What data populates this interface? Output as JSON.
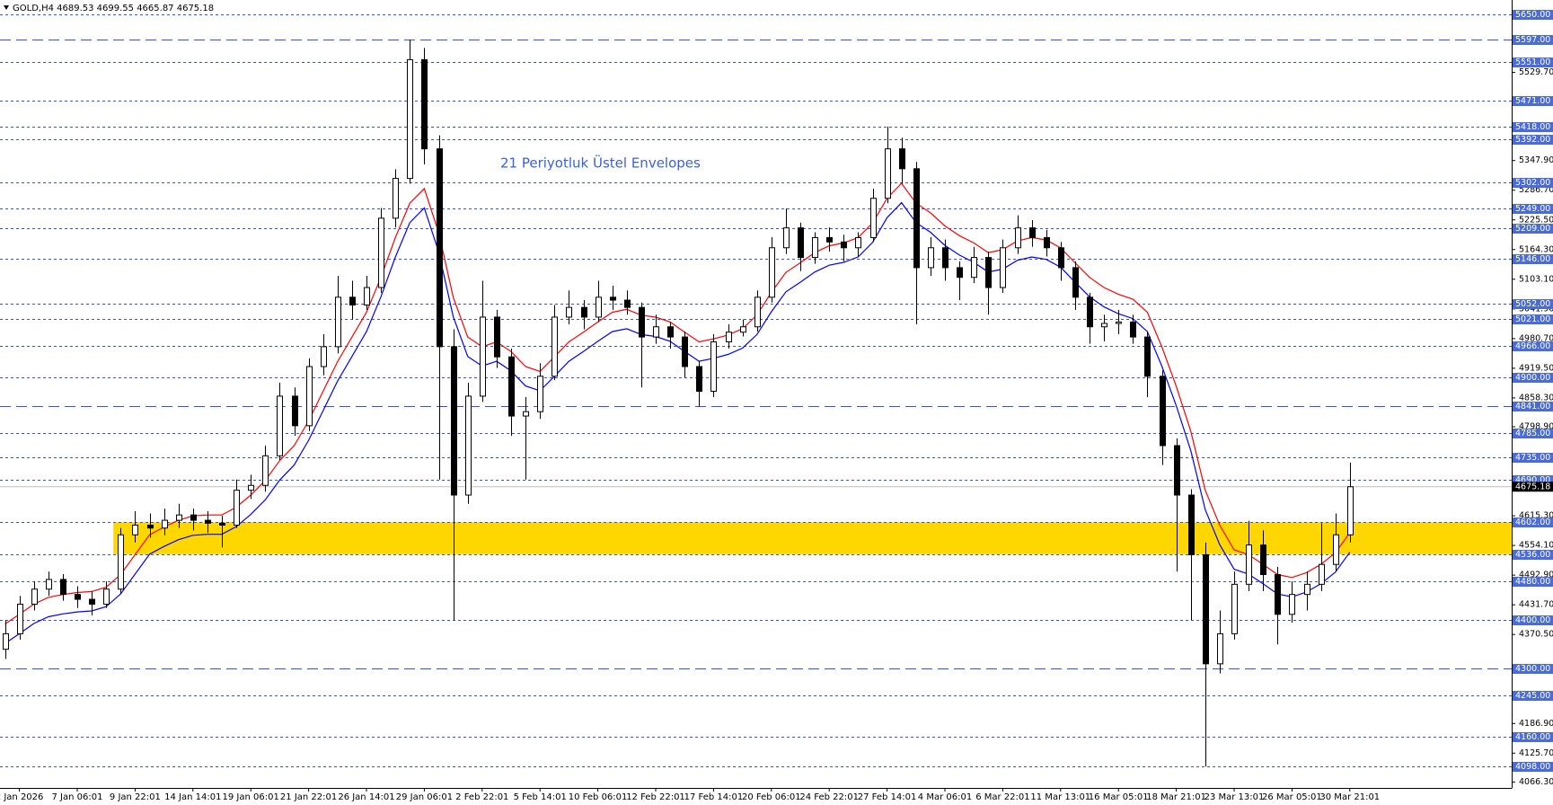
{
  "chart_data": {
    "type": "candlestick",
    "title": "GOLD,H4  4689.53 4699.55 4665.87 4675.18",
    "annotation": "21 Periyotluk Üstel Envelopes",
    "annotation_color": "#3a62d8",
    "categories": [
      null,
      "2 Jan 2026",
      null,
      null,
      null,
      "7 Jan 06:01",
      null,
      null,
      null,
      "9 Jan 22:01",
      null,
      null,
      null,
      "14 Jan 14:01",
      null,
      null,
      null,
      "19 Jan 06:01",
      null,
      null,
      null,
      "21 Jan 22:01",
      null,
      null,
      null,
      "26 Jan 14:01",
      null,
      null,
      null,
      "29 Jan 06:01",
      null,
      null,
      null,
      "2 Feb 22:01",
      null,
      null,
      null,
      "5 Feb 14:01",
      null,
      null,
      null,
      "10 Feb 06:01",
      null,
      null,
      null,
      "12 Feb 22:01",
      null,
      null,
      null,
      "17 Feb 14:01",
      null,
      null,
      null,
      "20 Feb 06:01",
      null,
      null,
      null,
      "24 Feb 22:01",
      null,
      null,
      null,
      "27 Feb 14:01",
      null,
      null,
      null,
      "4 Mar 06:01",
      null,
      null,
      null,
      "6 Mar 22:01",
      null,
      null,
      null,
      "11 Mar 13:01",
      null,
      null,
      null,
      "16 Mar 05:01",
      null,
      null,
      null,
      "18 Mar 21:01",
      null,
      null,
      null,
      "23 Mar 13:01",
      null,
      null,
      null,
      "26 Mar 05:01",
      null,
      null,
      null,
      "30 Mar 21:01"
    ],
    "open": [
      4340,
      4372,
      4433,
      4464,
      4484,
      4453,
      4443,
      4433,
      4464,
      4576,
      4596,
      4590,
      4606,
      4617,
      4606,
      4600,
      4596,
      4668,
      4678,
      4739,
      4862,
      4801,
      4923,
      4964,
      5066,
      5050,
      5086,
      5229,
      5311,
      5556,
      5372,
      4964,
      4658,
      4862,
      5025,
      4943,
      4821,
      4830,
      4903,
      5025,
      5045,
      5025,
      5066,
      5060,
      5045,
      4984,
      5005,
      4984,
      4923,
      4872,
      4974,
      4994,
      5005,
      5066,
      5168,
      5209,
      5148,
      5189,
      5180,
      5168,
      5189,
      5270,
      5372,
      5331,
      5127,
      5168,
      5127,
      5107,
      5148,
      5086,
      5168,
      5209,
      5189,
      5168,
      5127,
      5066,
      5005,
      5012,
      5015,
      4984,
      4903,
      4760,
      4658,
      4535,
      4310,
      4372,
      4474,
      4555,
      4494,
      4412,
      4453,
      4474,
      4515,
      4576
    ],
    "high": [
      4400,
      4450,
      4480,
      4500,
      4495,
      4470,
      4460,
      4480,
      4590,
      4625,
      4620,
      4630,
      4640,
      4630,
      4625,
      4615,
      4690,
      4700,
      4760,
      4890,
      4880,
      4940,
      4990,
      5110,
      5100,
      5110,
      5250,
      5330,
      5597,
      5580,
      5400,
      5000,
      4890,
      5100,
      5040,
      4960,
      4860,
      4930,
      5050,
      5080,
      5060,
      5100,
      5090,
      5080,
      5055,
      5030,
      5015,
      4995,
      4935,
      4990,
      5010,
      5020,
      5080,
      5190,
      5249,
      5220,
      5200,
      5210,
      5195,
      5200,
      5290,
      5418,
      5395,
      5345,
      5190,
      5185,
      5140,
      5170,
      5160,
      5185,
      5235,
      5225,
      5205,
      5180,
      5140,
      5075,
      5030,
      5040,
      5030,
      4995,
      4915,
      4775,
      4670,
      4560,
      4420,
      4500,
      4605,
      4585,
      4510,
      4480,
      4500,
      4600,
      4620,
      4725
    ],
    "low": [
      4320,
      4360,
      4420,
      4450,
      4440,
      4425,
      4410,
      4425,
      4455,
      4560,
      4570,
      4575,
      4590,
      4585,
      4580,
      4550,
      4590,
      4650,
      4665,
      4730,
      4780,
      4790,
      4905,
      4950,
      5020,
      5040,
      5075,
      5210,
      5300,
      5340,
      4690,
      4400,
      4640,
      4850,
      4920,
      4780,
      4690,
      4815,
      4895,
      5010,
      5000,
      5015,
      5040,
      5030,
      4880,
      4970,
      4960,
      4900,
      4840,
      4860,
      4960,
      4985,
      4995,
      5055,
      5155,
      5120,
      5135,
      5160,
      5140,
      5150,
      5180,
      5260,
      5300,
      5010,
      5110,
      5100,
      5060,
      5095,
      5030,
      5075,
      5155,
      5170,
      5150,
      5100,
      5040,
      4970,
      4975,
      4990,
      4970,
      4860,
      4720,
      4500,
      4400,
      4098,
      4290,
      4360,
      4460,
      4460,
      4350,
      4395,
      4420,
      4460,
      4500,
      4560
    ],
    "close": [
      4372,
      4433,
      4464,
      4484,
      4453,
      4443,
      4433,
      4464,
      4576,
      4596,
      4590,
      4606,
      4617,
      4606,
      4600,
      4596,
      4668,
      4678,
      4739,
      4862,
      4801,
      4923,
      4964,
      5066,
      5050,
      5086,
      5229,
      5311,
      5556,
      5372,
      4964,
      4658,
      4862,
      5025,
      4943,
      4821,
      4830,
      4903,
      5025,
      5045,
      5025,
      5066,
      5060,
      5045,
      4984,
      5005,
      4984,
      4923,
      4872,
      4974,
      4994,
      5005,
      5066,
      5168,
      5209,
      5148,
      5189,
      5180,
      5168,
      5189,
      5270,
      5372,
      5331,
      5127,
      5168,
      5127,
      5107,
      5148,
      5086,
      5168,
      5209,
      5189,
      5168,
      5127,
      5066,
      5005,
      5012,
      5015,
      4984,
      4903,
      4760,
      4658,
      4535,
      4310,
      4372,
      4474,
      4555,
      4494,
      4412,
      4453,
      4474,
      4515,
      4576,
      4675.18
    ],
    "bull_color": "#ffffff",
    "bear_color": "#000000",
    "wick_color": "#000000",
    "envelopes": [
      {
        "color": "#ff0000",
        "values": [
          4392,
          4412,
          4433,
          4447,
          4453,
          4457,
          4459,
          4468,
          4494,
          4535,
          4576,
          4592,
          4606,
          4615,
          4617,
          4617,
          4633,
          4658,
          4688,
          4729,
          4760,
          4811,
          4872,
          4933,
          4984,
          5035,
          5107,
          5189,
          5260,
          5290,
          5199,
          5066,
          4984,
          4964,
          4974,
          4954,
          4923,
          4913,
          4943,
          4974,
          4994,
          5015,
          5035,
          5041,
          5029,
          5025,
          5015,
          4994,
          4974,
          4980,
          4988,
          5001,
          5029,
          5076,
          5117,
          5137,
          5158,
          5172,
          5178,
          5189,
          5219,
          5270,
          5301,
          5260,
          5240,
          5213,
          5193,
          5178,
          5158,
          5164,
          5182,
          5189,
          5184,
          5168,
          5137,
          5107,
          5086,
          5072,
          5062,
          5035,
          4964,
          4882,
          4790,
          4668,
          4596,
          4545,
          4535,
          4515,
          4494,
          4488,
          4498,
          4515,
          4539,
          4580
        ]
      },
      {
        "color": "#0000ff",
        "values": [
          4352,
          4372,
          4393,
          4407,
          4413,
          4417,
          4419,
          4428,
          4454,
          4495,
          4536,
          4552,
          4566,
          4575,
          4577,
          4577,
          4593,
          4618,
          4648,
          4689,
          4720,
          4771,
          4832,
          4893,
          4944,
          4995,
          5067,
          5149,
          5220,
          5250,
          5159,
          5026,
          4944,
          4924,
          4934,
          4914,
          4883,
          4873,
          4903,
          4934,
          4954,
          4975,
          4995,
          5001,
          4989,
          4985,
          4975,
          4954,
          4934,
          4940,
          4948,
          4961,
          4989,
          5036,
          5077,
          5097,
          5118,
          5132,
          5138,
          5149,
          5179,
          5230,
          5261,
          5220,
          5200,
          5173,
          5153,
          5138,
          5118,
          5124,
          5142,
          5149,
          5144,
          5128,
          5097,
          5067,
          5046,
          5032,
          5022,
          4995,
          4924,
          4842,
          4750,
          4628,
          4556,
          4505,
          4495,
          4475,
          4454,
          4448,
          4458,
          4475,
          4499,
          4540
        ]
      }
    ],
    "zone": {
      "from": 4536,
      "to": 4602,
      "color": "#ffd700",
      "start": 8
    },
    "level_color": "#3556d0",
    "level_label_color": "#4a6cd4",
    "levels": [
      {
        "value": 5650,
        "label": "5650.00",
        "dash": "short"
      },
      {
        "value": 5597,
        "label": "5597.00",
        "dash": "long"
      },
      {
        "value": 5551,
        "label": "5551.00",
        "dash": "short"
      },
      {
        "value": 5471,
        "label": "5471.00",
        "dash": "short"
      },
      {
        "value": 5418,
        "label": "5418.00",
        "dash": "short"
      },
      {
        "value": 5392,
        "label": "5392.00",
        "dash": "short"
      },
      {
        "value": 5302,
        "label": "5302.00",
        "dash": "short"
      },
      {
        "value": 5249,
        "label": "5249.00",
        "dash": "short"
      },
      {
        "value": 5209,
        "label": "5209.00",
        "dash": "short"
      },
      {
        "value": 5146,
        "label": "5146.00",
        "dash": "short"
      },
      {
        "value": 5052,
        "label": "5052.00",
        "dash": "short"
      },
      {
        "value": 5021,
        "label": "5021.00",
        "dash": "short"
      },
      {
        "value": 4966,
        "label": "4966.00",
        "dash": "short"
      },
      {
        "value": 4900,
        "label": "4900.00",
        "dash": "short"
      },
      {
        "value": 4841,
        "label": "4841.00",
        "dash": "long"
      },
      {
        "value": 4785,
        "label": "4785.00",
        "dash": "short"
      },
      {
        "value": 4735,
        "label": "4735.00",
        "dash": "short"
      },
      {
        "value": 4690,
        "label": "4690.00",
        "dash": "short"
      },
      {
        "value": 4602,
        "label": "4602.00",
        "dash": "short"
      },
      {
        "value": 4536,
        "label": "4536.00",
        "dash": "short"
      },
      {
        "value": 4480,
        "label": "4480.00",
        "dash": "short"
      },
      {
        "value": 4400,
        "label": "4400.00",
        "dash": "short"
      },
      {
        "value": 4300,
        "label": "4300.00",
        "dash": "long"
      },
      {
        "value": 4245,
        "label": "4245.00",
        "dash": "short"
      },
      {
        "value": 4160,
        "label": "4160.00",
        "dash": "short"
      },
      {
        "value": 4098,
        "label": "4098.00",
        "dash": "short"
      }
    ],
    "current_price": 4675.18,
    "current_price_color": "#c0c0c0",
    "ylim": [
      4054,
      5679
    ],
    "yticks": [
      {
        "value": 5529.7,
        "label": "5529.70"
      },
      {
        "value": 5347.9,
        "label": "5347.90"
      },
      {
        "value": 5286.7,
        "label": "5286.70"
      },
      {
        "value": 5225.5,
        "label": "5225.50"
      },
      {
        "value": 5164.3,
        "label": "5164.30"
      },
      {
        "value": 5103.1,
        "label": "5103.10"
      },
      {
        "value": 5041.9,
        "label": "5041.90"
      },
      {
        "value": 4980.7,
        "label": "4980.70"
      },
      {
        "value": 4919.5,
        "label": "4919.50"
      },
      {
        "value": 4858.3,
        "label": "4858.30"
      },
      {
        "value": 4798.9,
        "label": "4798.90"
      },
      {
        "value": 4615.3,
        "label": "4615.30"
      },
      {
        "value": 4554.1,
        "label": "4554.10"
      },
      {
        "value": 4492.9,
        "label": "4492.90"
      },
      {
        "value": 4431.7,
        "label": "4431.70"
      },
      {
        "value": 4370.5,
        "label": "4370.50"
      },
      {
        "value": 4186.9,
        "label": "4186.90"
      },
      {
        "value": 4125.7,
        "label": "4125.70"
      },
      {
        "value": 4066.3,
        "label": "4066.30"
      }
    ],
    "grid": false
  }
}
